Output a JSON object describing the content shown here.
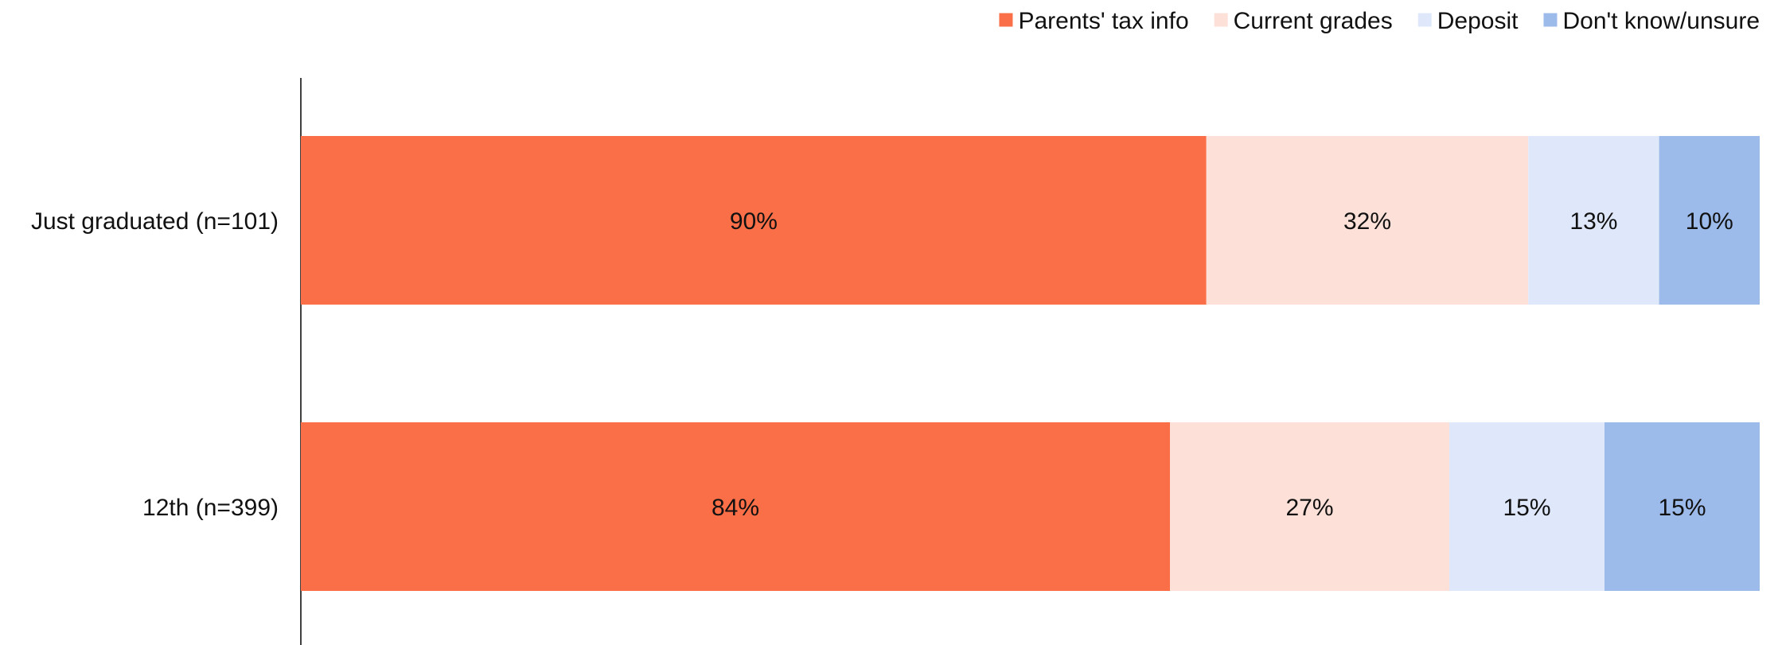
{
  "chart_data": {
    "type": "bar",
    "orientation": "horizontal",
    "stacked": true,
    "categories": [
      "Just graduated (n=101)",
      "12th (n=399)"
    ],
    "series": [
      {
        "name": "Parents' tax info",
        "color": "#FA6F47",
        "values": [
          90,
          84
        ],
        "labels": [
          "90%",
          "84%"
        ]
      },
      {
        "name": "Current grades",
        "color": "#FDE0D8",
        "values": [
          32,
          27
        ],
        "labels": [
          "32%",
          "27%"
        ]
      },
      {
        "name": "Deposit",
        "color": "#DFE8FB",
        "values": [
          13,
          15
        ],
        "labels": [
          "13%",
          "15%"
        ]
      },
      {
        "name": "Don't know/unsure",
        "color": "#9DBBEA",
        "values": [
          10,
          15
        ],
        "labels": [
          "10%",
          "15%"
        ]
      }
    ],
    "legend_position": "top-right",
    "grid": false,
    "value_axis_visible": false
  }
}
